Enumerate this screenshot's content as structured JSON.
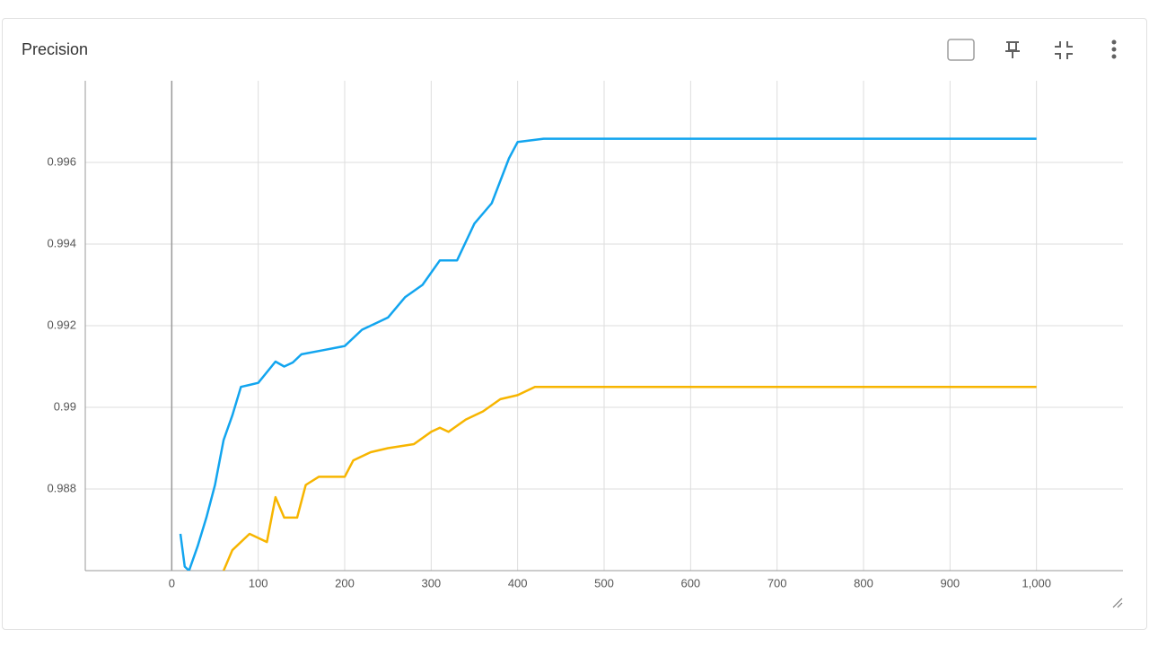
{
  "chart_data": {
    "type": "line",
    "title": "Precision",
    "xlim": [
      -100,
      1100
    ],
    "xticks": [
      0,
      100,
      200,
      300,
      400,
      500,
      600,
      700,
      800,
      900,
      {
        "value": 1000,
        "label": "1,000"
      }
    ],
    "ylim": [
      0.986,
      0.998
    ],
    "yticks": [
      0.988,
      0.99,
      0.992,
      0.994,
      0.996
    ],
    "grid": true,
    "series": [
      {
        "color": "#12a5ef",
        "x": [
          10,
          15,
          20,
          30,
          40,
          50,
          60,
          70,
          80,
          90,
          100,
          120,
          130,
          140,
          150,
          175,
          200,
          220,
          240,
          250,
          270,
          290,
          310,
          330,
          350,
          370,
          390,
          400,
          430,
          1000
        ],
        "values": [
          0.9869,
          0.9861,
          0.986,
          0.9866,
          0.9873,
          0.9881,
          0.9892,
          0.9898,
          0.9905,
          0.99055,
          0.9906,
          0.99112,
          0.991,
          0.9911,
          0.9913,
          0.9914,
          0.9915,
          0.9919,
          0.9921,
          0.9922,
          0.9927,
          0.993,
          0.9936,
          0.9936,
          0.9945,
          0.995,
          0.9961,
          0.9965,
          0.99658,
          0.99658
        ]
      },
      {
        "color": "#f7b500",
        "x": [
          60,
          70,
          90,
          110,
          120,
          130,
          145,
          155,
          170,
          200,
          210,
          230,
          250,
          280,
          300,
          310,
          320,
          340,
          360,
          380,
          400,
          420,
          1000
        ],
        "values": [
          0.986,
          0.9865,
          0.9869,
          0.9867,
          0.9878,
          0.9873,
          0.9873,
          0.9881,
          0.9883,
          0.9883,
          0.9887,
          0.9889,
          0.989,
          0.9891,
          0.9894,
          0.9895,
          0.9894,
          0.9897,
          0.9899,
          0.9902,
          0.9903,
          0.9905,
          0.9905
        ]
      }
    ]
  }
}
